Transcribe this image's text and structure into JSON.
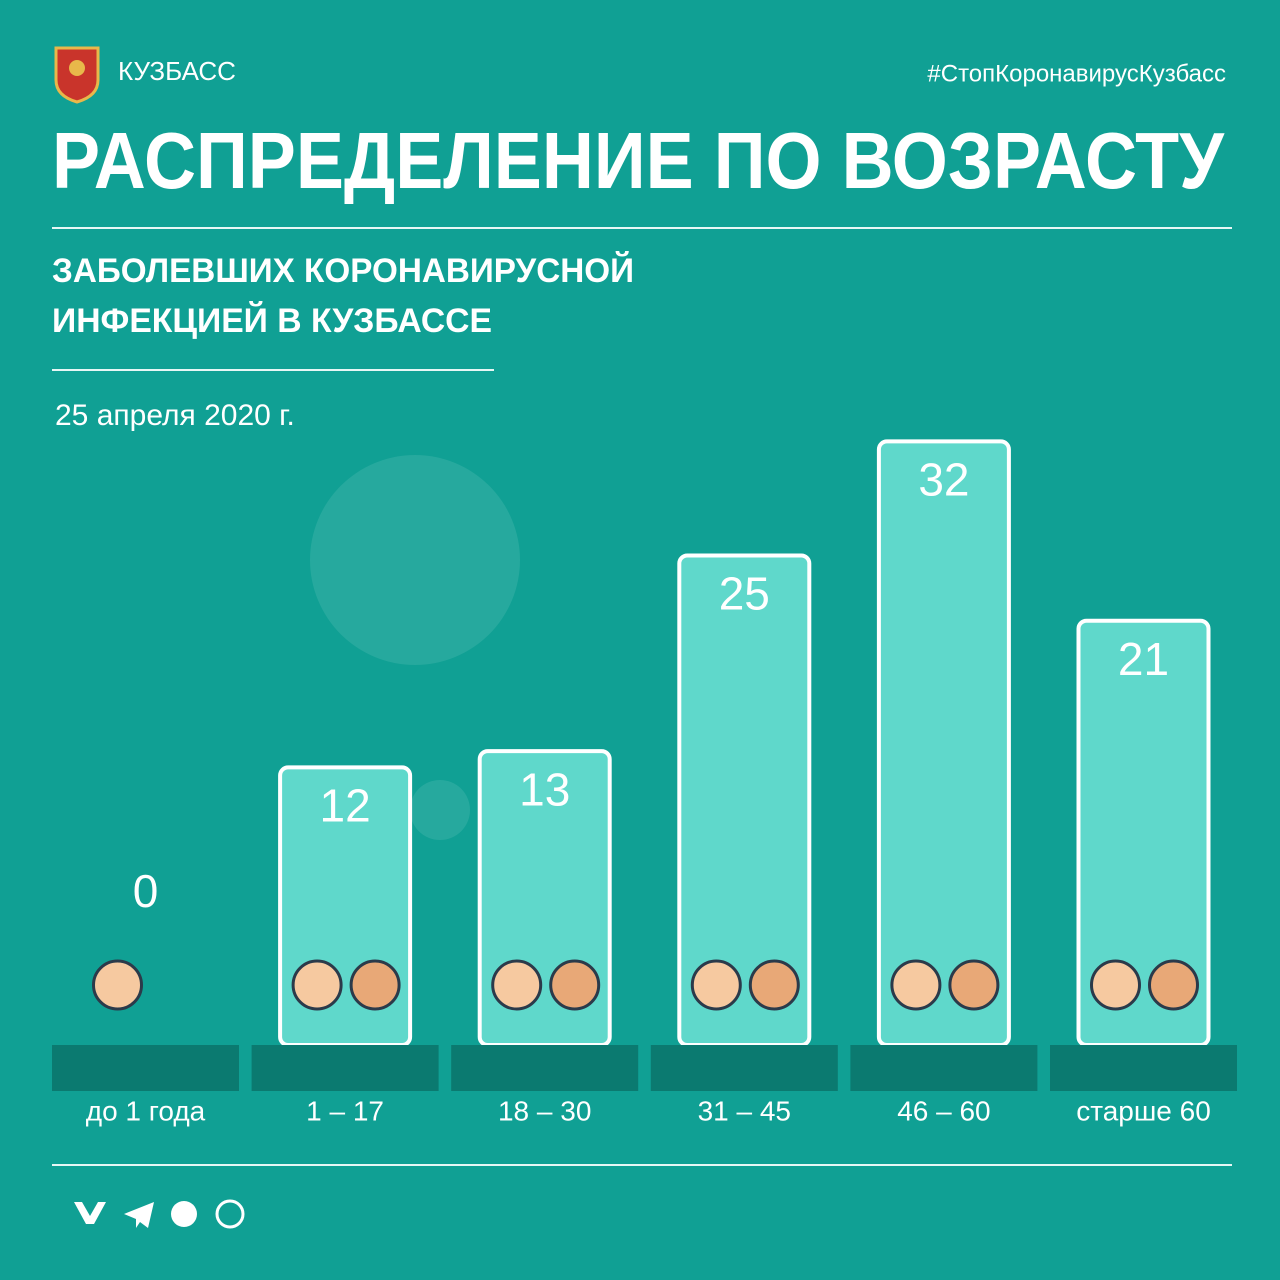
{
  "brand": "КУЗБАСС",
  "hashtag": "#СтопКоронавирусКузбасс",
  "chart_data": {
    "type": "bar",
    "title": "РАСПРЕДЕЛЕНИЕ ПО ВОЗРАСТУ",
    "subtitle": [
      "ЗАБОЛЕВШИХ КОРОНАВИРУСНОЙ",
      "ИНФЕКЦИЕЙ В КУЗБАССЕ"
    ],
    "date": "25 апреля 2020 г.",
    "categories": [
      "до 1 года",
      "1 – 17",
      "18 – 30",
      "31 – 45",
      "46 – 60",
      "старше 60"
    ],
    "values": [
      0,
      12,
      13,
      25,
      32,
      21
    ],
    "color": "#5fd8cb"
  }
}
